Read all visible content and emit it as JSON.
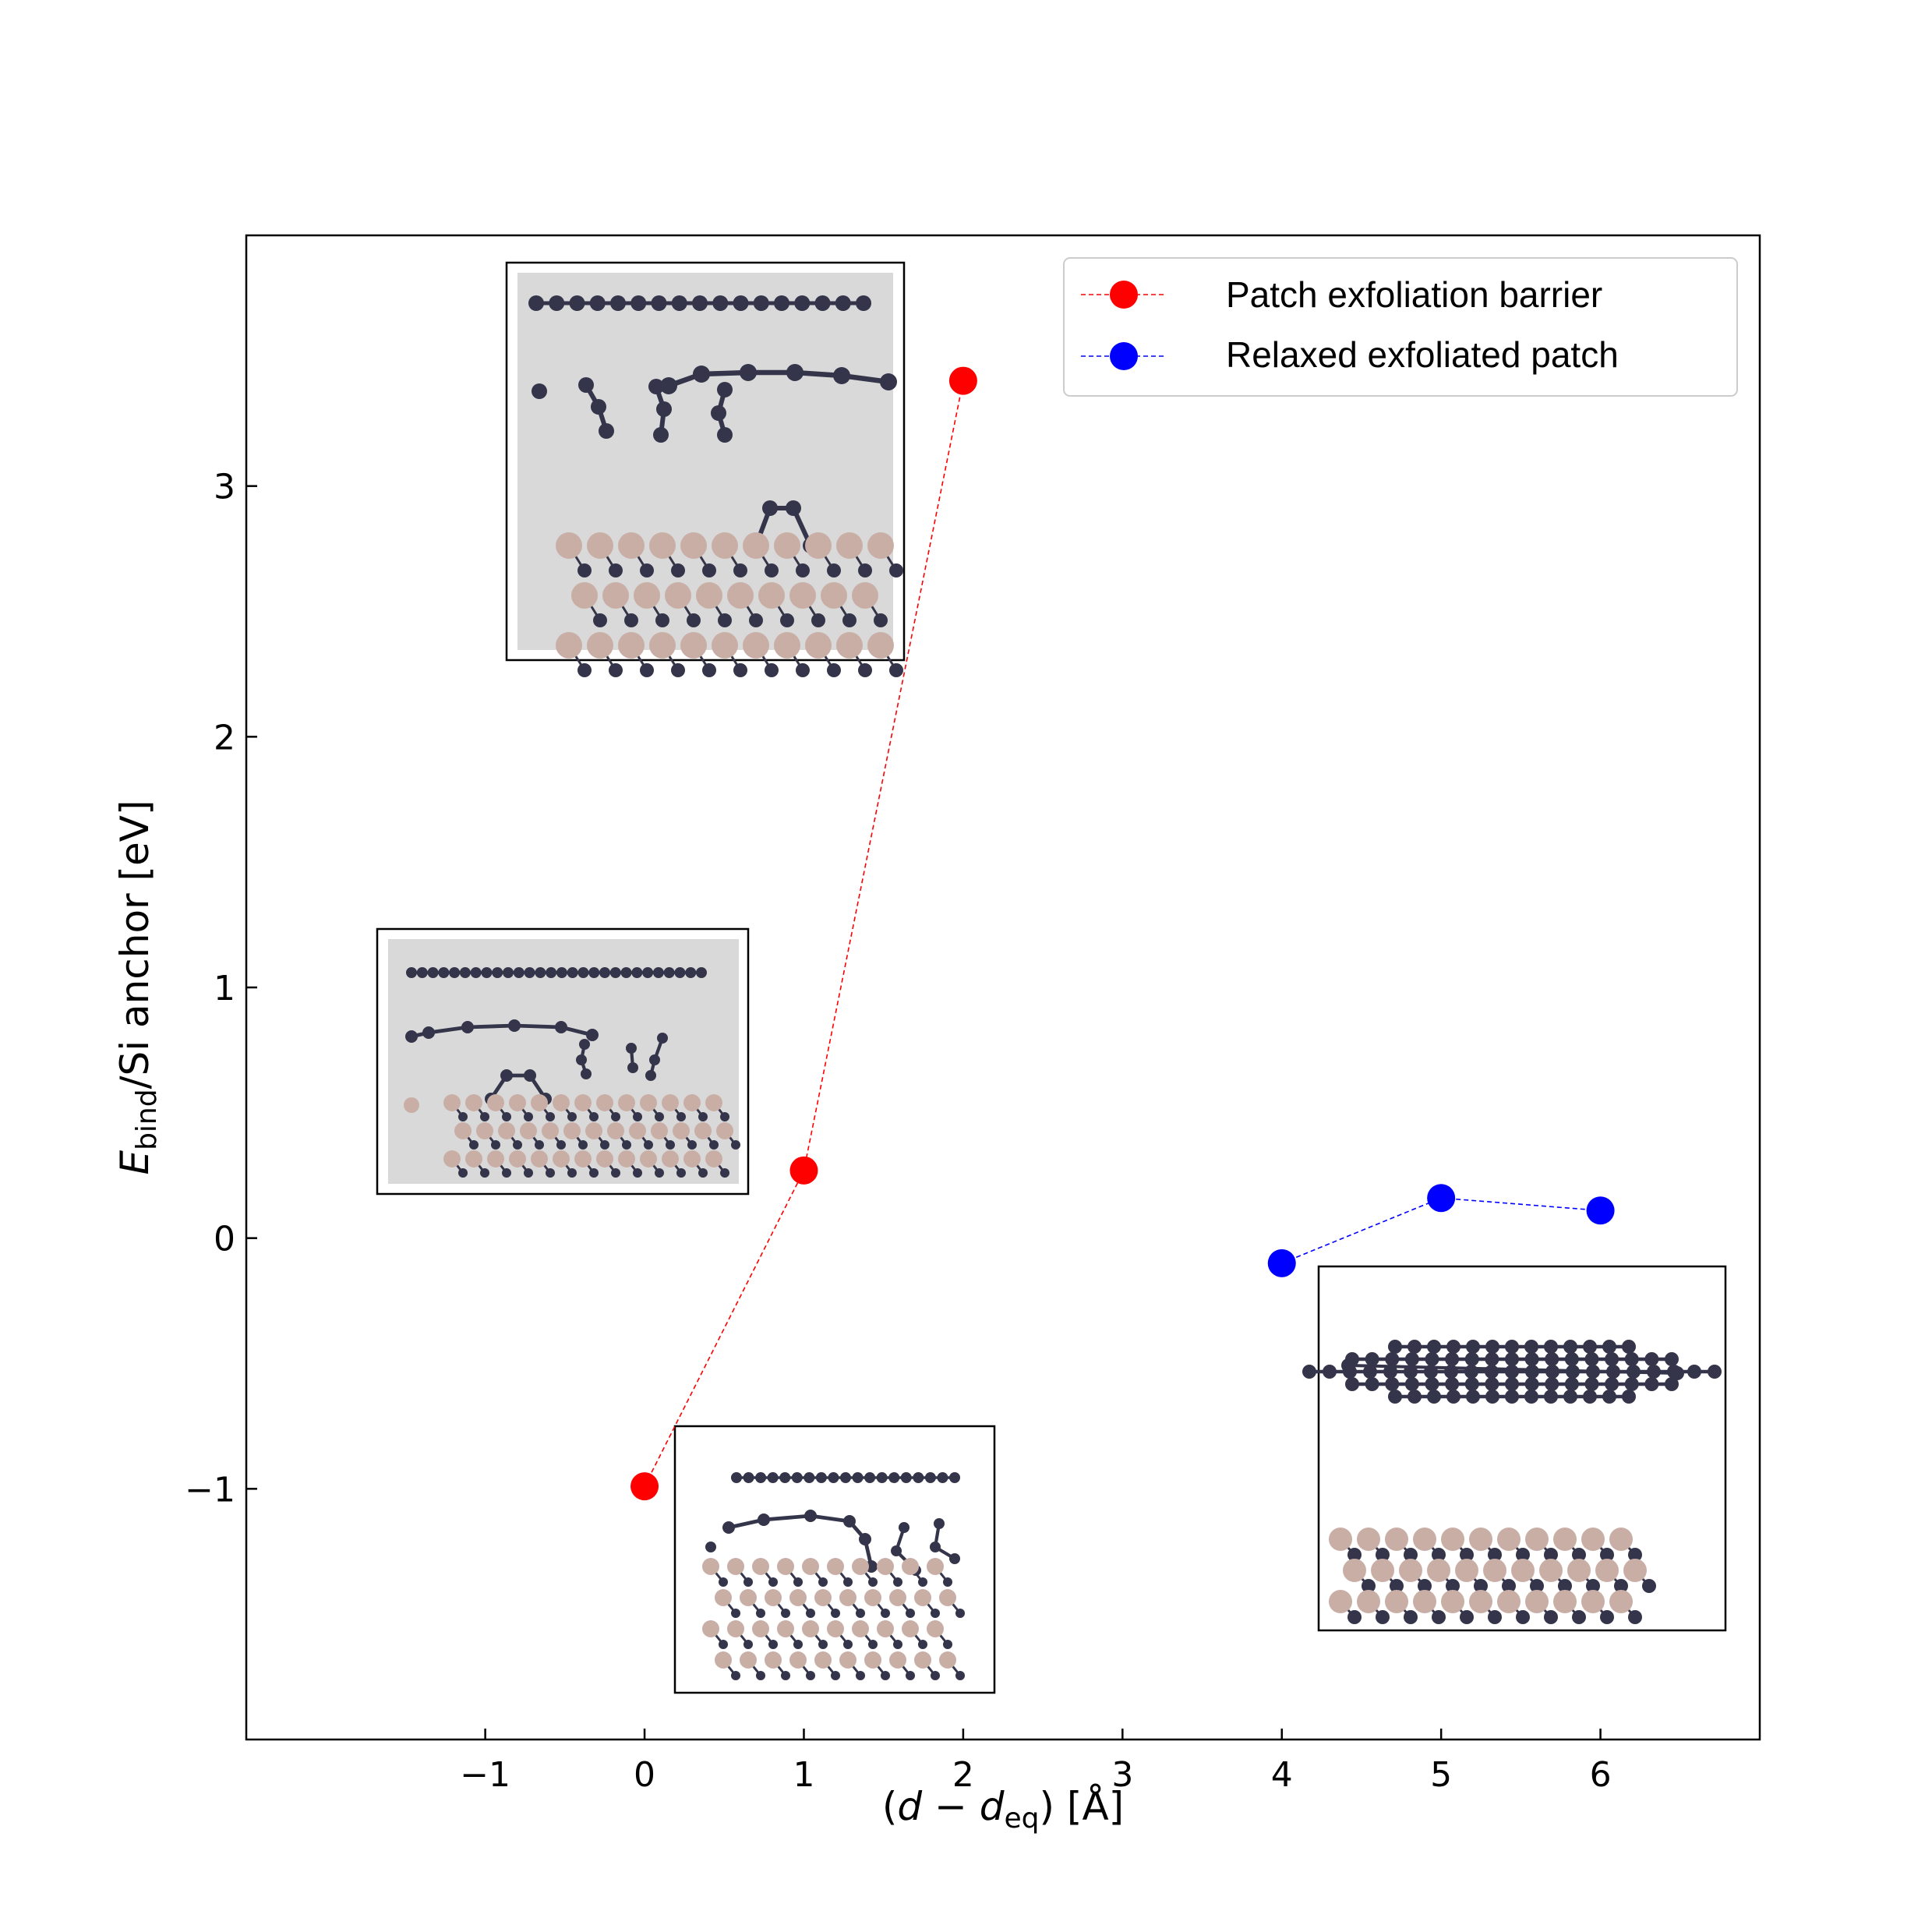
{
  "chart_data": {
    "type": "scatter",
    "xlabel": "(d − d_eq) [Å]",
    "xlabel_parts": {
      "open": "(",
      "d": "d",
      "minus": " − ",
      "d2": "d",
      "sub": "eq",
      "close": ") [Å]"
    },
    "ylabel": "E_bind/Si anchor [eV]",
    "ylabel_parts": {
      "E": "E",
      "sub": "bind",
      "rest": "/Si anchor [eV]"
    },
    "xlim": [
      -2.5,
      7
    ],
    "ylim": [
      -2,
      4
    ],
    "xticks": [
      -1,
      0,
      1,
      2,
      3,
      4,
      5,
      6
    ],
    "yticks": [
      -1,
      0,
      1,
      2,
      3
    ],
    "xtick_labels": [
      "−1",
      "0",
      "1",
      "2",
      "3",
      "4",
      "5",
      "6"
    ],
    "ytick_labels": [
      "−1",
      "0",
      "1",
      "2",
      "3"
    ],
    "grid": false,
    "legend_position": "top-right",
    "series": [
      {
        "name": "Patch exfoliation barrier",
        "color": "#ff0000",
        "line_style": "dashed",
        "x": [
          0,
          1,
          2
        ],
        "y": [
          -0.99,
          0.27,
          3.42
        ]
      },
      {
        "name": "Relaxed exfoliated patch",
        "color": "#0000ff",
        "line_style": "dashed",
        "x": [
          4,
          5,
          6
        ],
        "y": [
          -0.1,
          0.16,
          0.11
        ]
      }
    ],
    "insets": [
      {
        "name": "inset-structure-2A",
        "background": "#d9d9d9",
        "image": "atomic-structure-icon"
      },
      {
        "name": "inset-structure-1A",
        "background": "#d9d9d9",
        "image": "atomic-structure-icon"
      },
      {
        "name": "inset-structure-0A",
        "background": "#ffffff",
        "image": "atomic-structure-icon"
      },
      {
        "name": "inset-structure-relaxed",
        "background": "#ffffff",
        "image": "atomic-structure-icon"
      }
    ],
    "atom_colors": {
      "carbon": "#34344a",
      "silicon": "#c9aea6"
    }
  }
}
